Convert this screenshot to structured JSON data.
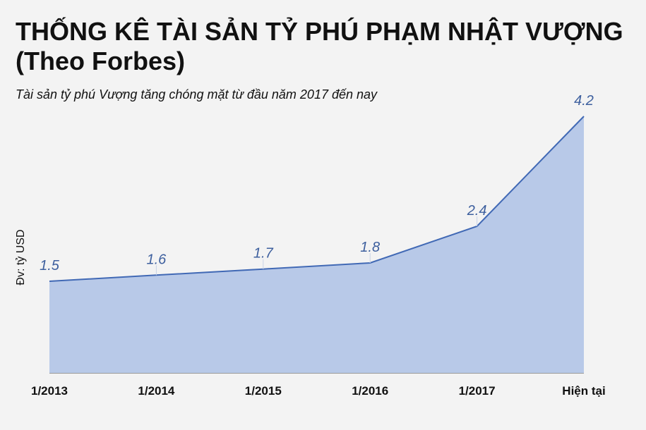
{
  "title": "THỐNG KÊ TÀI SẢN TỶ PHÚ PHẠM NHẬT VƯỢNG (Theo Forbes)",
  "subtitle": "Tài sản tỷ phú Vượng tăng chóng mặt từ đầu năm 2017 đến nay",
  "colors": {
    "background": "#f3f3f3",
    "area_fill": "#b8c9e8",
    "line": "#4169b5",
    "data_label": "#3d5f9e",
    "text": "#111111"
  },
  "chart_data": {
    "type": "area",
    "categories": [
      "1/2013",
      "1/2014",
      "1/2015",
      "1/2016",
      "1/2017",
      "Hiện tại"
    ],
    "series": [
      {
        "values": [
          1.5,
          1.6,
          1.7,
          1.8,
          2.4,
          4.2
        ]
      }
    ],
    "data_labels": [
      "1.5",
      "1.6",
      "1.7",
      "1.8",
      "2.4",
      "4.2"
    ],
    "ylabel": "Đv: tỷ USD",
    "xlabel": "",
    "ylim": [
      0,
      4.5
    ],
    "grid": false,
    "legend": "none"
  }
}
